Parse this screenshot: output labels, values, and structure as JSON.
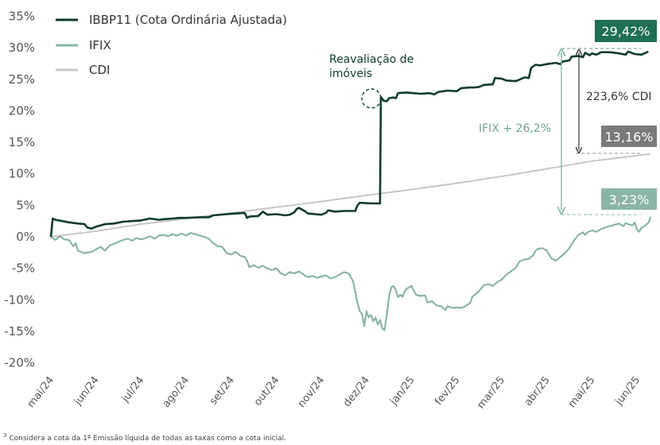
{
  "chart_data": {
    "type": "line",
    "title": "",
    "xlabel": "",
    "ylabel": "",
    "ylim": [
      -20,
      35
    ],
    "yticks": [
      "35%",
      "30%",
      "25%",
      "20%",
      "15%",
      "10%",
      "5%",
      "0%",
      "-5%",
      "-10%",
      "-15%",
      "-20%"
    ],
    "ytick_values": [
      35,
      30,
      25,
      20,
      15,
      10,
      5,
      0,
      -5,
      -10,
      -15,
      -20
    ],
    "categories": [
      "mai/24",
      "jun/24",
      "jul/24",
      "ago/24",
      "set/24",
      "out/24",
      "nov/24",
      "dez/24",
      "jan/25",
      "fev/25",
      "mar/25",
      "abr/25",
      "mai/25",
      "jun/25"
    ],
    "grid": false,
    "legend_placement": "top-left",
    "series": [
      {
        "name": "IBBP11 (Cota Ordinária Ajustada)",
        "color": "#0d3b2e",
        "points": [
          [
            0,
            0
          ],
          [
            0.04,
            2.9
          ],
          [
            0.1,
            2.7
          ],
          [
            0.25,
            2.5
          ],
          [
            0.4,
            2.3
          ],
          [
            0.6,
            2.1
          ],
          [
            0.75,
            2.0
          ],
          [
            0.8,
            1.5
          ],
          [
            0.9,
            1.3
          ],
          [
            1.0,
            1.6
          ],
          [
            1.2,
            2.0
          ],
          [
            1.4,
            2.1
          ],
          [
            1.6,
            2.4
          ],
          [
            1.8,
            2.5
          ],
          [
            2.0,
            2.6
          ],
          [
            2.2,
            2.9
          ],
          [
            2.4,
            2.7
          ],
          [
            2.5,
            2.8
          ],
          [
            2.7,
            2.9
          ],
          [
            2.85,
            3.0
          ],
          [
            3.0,
            3.0
          ],
          [
            3.3,
            3.1
          ],
          [
            3.5,
            3.1
          ],
          [
            3.6,
            3.4
          ],
          [
            3.9,
            3.6
          ],
          [
            4.1,
            3.7
          ],
          [
            4.3,
            3.8
          ],
          [
            4.35,
            3.0
          ],
          [
            4.4,
            3.2
          ],
          [
            4.6,
            3.3
          ],
          [
            4.7,
            4.0
          ],
          [
            4.8,
            3.5
          ],
          [
            5.0,
            3.6
          ],
          [
            5.2,
            3.4
          ],
          [
            5.3,
            3.5
          ],
          [
            5.4,
            3.9
          ],
          [
            5.45,
            4.4
          ],
          [
            5.5,
            4.6
          ],
          [
            5.65,
            4.0
          ],
          [
            5.7,
            3.7
          ],
          [
            6.0,
            3.5
          ],
          [
            6.1,
            3.8
          ],
          [
            6.15,
            4.2
          ],
          [
            6.3,
            4.0
          ],
          [
            6.5,
            4.1
          ],
          [
            6.75,
            4.1
          ],
          [
            6.8,
            5.0
          ],
          [
            6.85,
            5.4
          ],
          [
            7.1,
            5.3
          ],
          [
            7.3,
            5.3
          ],
          [
            7.32,
            22.2
          ],
          [
            7.38,
            21.6
          ],
          [
            7.45,
            21.5
          ],
          [
            7.5,
            22.0
          ],
          [
            7.6,
            22.1
          ],
          [
            7.65,
            22.0
          ],
          [
            7.7,
            22.8
          ],
          [
            7.9,
            22.9
          ],
          [
            8.2,
            22.7
          ],
          [
            8.4,
            22.8
          ],
          [
            8.5,
            22.6
          ],
          [
            8.6,
            23.0
          ],
          [
            8.8,
            23.2
          ],
          [
            9.0,
            23.1
          ],
          [
            9.1,
            23.6
          ],
          [
            9.3,
            23.7
          ],
          [
            9.4,
            23.7
          ],
          [
            9.5,
            23.8
          ],
          [
            9.6,
            24.1
          ],
          [
            9.8,
            24.2
          ],
          [
            9.85,
            25.2
          ],
          [
            10.0,
            25.1
          ],
          [
            10.1,
            24.8
          ],
          [
            10.3,
            24.7
          ],
          [
            10.35,
            24.8
          ],
          [
            10.5,
            25.3
          ],
          [
            10.6,
            25.2
          ],
          [
            10.65,
            26.8
          ],
          [
            10.75,
            27.3
          ],
          [
            10.85,
            27.2
          ],
          [
            11.0,
            27.4
          ],
          [
            11.1,
            27.5
          ],
          [
            11.2,
            27.6
          ],
          [
            11.3,
            27.4
          ],
          [
            11.35,
            27.8
          ],
          [
            11.5,
            28.0
          ],
          [
            11.55,
            28.6
          ],
          [
            11.7,
            28.7
          ],
          [
            11.8,
            28.5
          ],
          [
            11.85,
            29.2
          ],
          [
            11.95,
            28.8
          ],
          [
            12.0,
            29.1
          ],
          [
            12.1,
            28.9
          ],
          [
            12.2,
            29.3
          ],
          [
            12.4,
            29.3
          ],
          [
            12.6,
            29.1
          ],
          [
            12.75,
            28.9
          ],
          [
            12.8,
            29.4
          ],
          [
            12.95,
            29.0
          ],
          [
            13.1,
            28.9
          ],
          [
            13.25,
            29.4
          ]
        ]
      },
      {
        "name": "IFIX",
        "color": "#8ab5a6",
        "points": [
          [
            0,
            0
          ],
          [
            0.1,
            -0.5
          ],
          [
            0.2,
            0.1
          ],
          [
            0.3,
            -0.4
          ],
          [
            0.4,
            -0.5
          ],
          [
            0.5,
            -1.5
          ],
          [
            0.55,
            -1.0
          ],
          [
            0.6,
            -2.2
          ],
          [
            0.75,
            -2.6
          ],
          [
            0.9,
            -2.4
          ],
          [
            1.1,
            -1.6
          ],
          [
            1.2,
            -2.2
          ],
          [
            1.3,
            -1.4
          ],
          [
            1.4,
            -1.1
          ],
          [
            1.5,
            -0.8
          ],
          [
            1.6,
            -0.5
          ],
          [
            1.7,
            -0.3
          ],
          [
            1.8,
            -0.6
          ],
          [
            1.9,
            -0.2
          ],
          [
            2.0,
            -0.4
          ],
          [
            2.1,
            -0.2
          ],
          [
            2.2,
            0.1
          ],
          [
            2.3,
            -0.3
          ],
          [
            2.4,
            0.2
          ],
          [
            2.5,
            0.3
          ],
          [
            2.6,
            0.1
          ],
          [
            2.7,
            0.4
          ],
          [
            2.8,
            0.2
          ],
          [
            2.9,
            0.5
          ],
          [
            3.0,
            0.2
          ],
          [
            3.1,
            0.6
          ],
          [
            3.2,
            0.4
          ],
          [
            3.3,
            0.2
          ],
          [
            3.4,
            0.0
          ],
          [
            3.5,
            -0.3
          ],
          [
            3.6,
            -1.0
          ],
          [
            3.7,
            -1.5
          ],
          [
            3.8,
            -1.6
          ],
          [
            3.9,
            -2.6
          ],
          [
            4.0,
            -2.8
          ],
          [
            4.1,
            -2.4
          ],
          [
            4.2,
            -3.0
          ],
          [
            4.3,
            -3.2
          ],
          [
            4.35,
            -3.8
          ],
          [
            4.4,
            -4.8
          ],
          [
            4.5,
            -4.5
          ],
          [
            4.6,
            -4.9
          ],
          [
            4.7,
            -4.6
          ],
          [
            4.8,
            -5.0
          ],
          [
            4.9,
            -5.3
          ],
          [
            5.0,
            -5.0
          ],
          [
            5.1,
            -5.8
          ],
          [
            5.2,
            -6.1
          ],
          [
            5.3,
            -5.6
          ],
          [
            5.4,
            -5.8
          ],
          [
            5.5,
            -5.5
          ],
          [
            5.6,
            -6.0
          ],
          [
            5.7,
            -6.4
          ],
          [
            5.8,
            -6.2
          ],
          [
            5.9,
            -6.5
          ],
          [
            6.0,
            -6.3
          ],
          [
            6.1,
            -6.1
          ],
          [
            6.2,
            -6.6
          ],
          [
            6.3,
            -6.4
          ],
          [
            6.4,
            -6.0
          ],
          [
            6.5,
            -5.6
          ],
          [
            6.6,
            -5.8
          ],
          [
            6.7,
            -7.0
          ],
          [
            6.75,
            -8.7
          ],
          [
            6.8,
            -10.5
          ],
          [
            6.85,
            -11.8
          ],
          [
            6.9,
            -12.2
          ],
          [
            6.95,
            -14.2
          ],
          [
            7.0,
            -11.8
          ],
          [
            7.05,
            -12.8
          ],
          [
            7.1,
            -12.4
          ],
          [
            7.15,
            -13.4
          ],
          [
            7.2,
            -12.8
          ],
          [
            7.25,
            -13.9
          ],
          [
            7.3,
            -13.2
          ],
          [
            7.35,
            -14.5
          ],
          [
            7.4,
            -14.8
          ],
          [
            7.45,
            -12.4
          ],
          [
            7.5,
            -9.5
          ],
          [
            7.55,
            -8.0
          ],
          [
            7.6,
            -7.8
          ],
          [
            7.65,
            -8.5
          ],
          [
            7.7,
            -9.6
          ],
          [
            7.75,
            -9.2
          ],
          [
            7.8,
            -9.5
          ],
          [
            7.85,
            -8.6
          ],
          [
            7.9,
            -8.2
          ],
          [
            8.0,
            -7.8
          ],
          [
            8.05,
            -8.6
          ],
          [
            8.1,
            -9.2
          ],
          [
            8.2,
            -9.4
          ],
          [
            8.3,
            -9.3
          ],
          [
            8.35,
            -10.4
          ],
          [
            8.45,
            -10.2
          ],
          [
            8.55,
            -10.9
          ],
          [
            8.65,
            -11.0
          ],
          [
            8.75,
            -11.6
          ],
          [
            8.8,
            -11.0
          ],
          [
            8.9,
            -11.3
          ],
          [
            9.0,
            -11.2
          ],
          [
            9.1,
            -11.3
          ],
          [
            9.2,
            -11.0
          ],
          [
            9.3,
            -10.5
          ],
          [
            9.35,
            -9.5
          ],
          [
            9.4,
            -9.2
          ],
          [
            9.5,
            -8.6
          ],
          [
            9.6,
            -7.7
          ],
          [
            9.7,
            -7.5
          ],
          [
            9.8,
            -7.8
          ],
          [
            9.9,
            -7.2
          ],
          [
            10.0,
            -6.8
          ],
          [
            10.1,
            -6.0
          ],
          [
            10.2,
            -5.5
          ],
          [
            10.3,
            -5.0
          ],
          [
            10.35,
            -4.4
          ],
          [
            10.4,
            -3.9
          ],
          [
            10.5,
            -3.6
          ],
          [
            10.6,
            -3.5
          ],
          [
            10.7,
            -2.9
          ],
          [
            10.75,
            -2.2
          ],
          [
            10.8,
            -1.9
          ],
          [
            10.9,
            -1.8
          ],
          [
            11.0,
            -2.2
          ],
          [
            11.05,
            -2.8
          ],
          [
            11.1,
            -3.4
          ],
          [
            11.2,
            -3.8
          ],
          [
            11.3,
            -3.2
          ],
          [
            11.4,
            -2.6
          ],
          [
            11.5,
            -1.8
          ],
          [
            11.55,
            -1.2
          ],
          [
            11.6,
            -0.6
          ],
          [
            11.7,
            0.3
          ],
          [
            11.8,
            0.7
          ],
          [
            11.85,
            0.3
          ],
          [
            11.9,
            0.7
          ],
          [
            12.0,
            1.0
          ],
          [
            12.1,
            0.8
          ],
          [
            12.2,
            1.2
          ],
          [
            12.3,
            1.5
          ],
          [
            12.4,
            1.7
          ],
          [
            12.5,
            1.9
          ],
          [
            12.6,
            2.1
          ],
          [
            12.7,
            1.7
          ],
          [
            12.75,
            2.2
          ],
          [
            12.8,
            2.0
          ],
          [
            12.9,
            1.8
          ],
          [
            12.95,
            2.3
          ],
          [
            13.0,
            1.1
          ],
          [
            13.05,
            0.8
          ],
          [
            13.1,
            1.5
          ],
          [
            13.15,
            1.6
          ],
          [
            13.2,
            1.9
          ],
          [
            13.25,
            2.2
          ],
          [
            13.3,
            3.2
          ]
        ]
      },
      {
        "name": "CDI",
        "color": "#c6c6c6",
        "points": [
          [
            0,
            0
          ],
          [
            1,
            0.9
          ],
          [
            2,
            2.0
          ],
          [
            3,
            2.9
          ],
          [
            4,
            3.8
          ],
          [
            5,
            4.7
          ],
          [
            6,
            5.6
          ],
          [
            7,
            6.6
          ],
          [
            8,
            7.5
          ],
          [
            9,
            8.5
          ],
          [
            10,
            9.6
          ],
          [
            11,
            10.8
          ],
          [
            12,
            12.0
          ],
          [
            13.3,
            13.16
          ]
        ]
      }
    ],
    "annotations": {
      "revaluation": "Reavaliação de imóveis",
      "ibbp11_final": "29,42%",
      "cdi_final": "13,16%",
      "ifix_final": "3,23%",
      "ifix_spread": "IFIX + 26,2%",
      "cdi_spread": "223,6% CDI"
    }
  },
  "footnote": {
    "marker": "3",
    "text": " Considera a cota da 1ª Emissão líquida de todas as taxas como a cota inicial."
  }
}
